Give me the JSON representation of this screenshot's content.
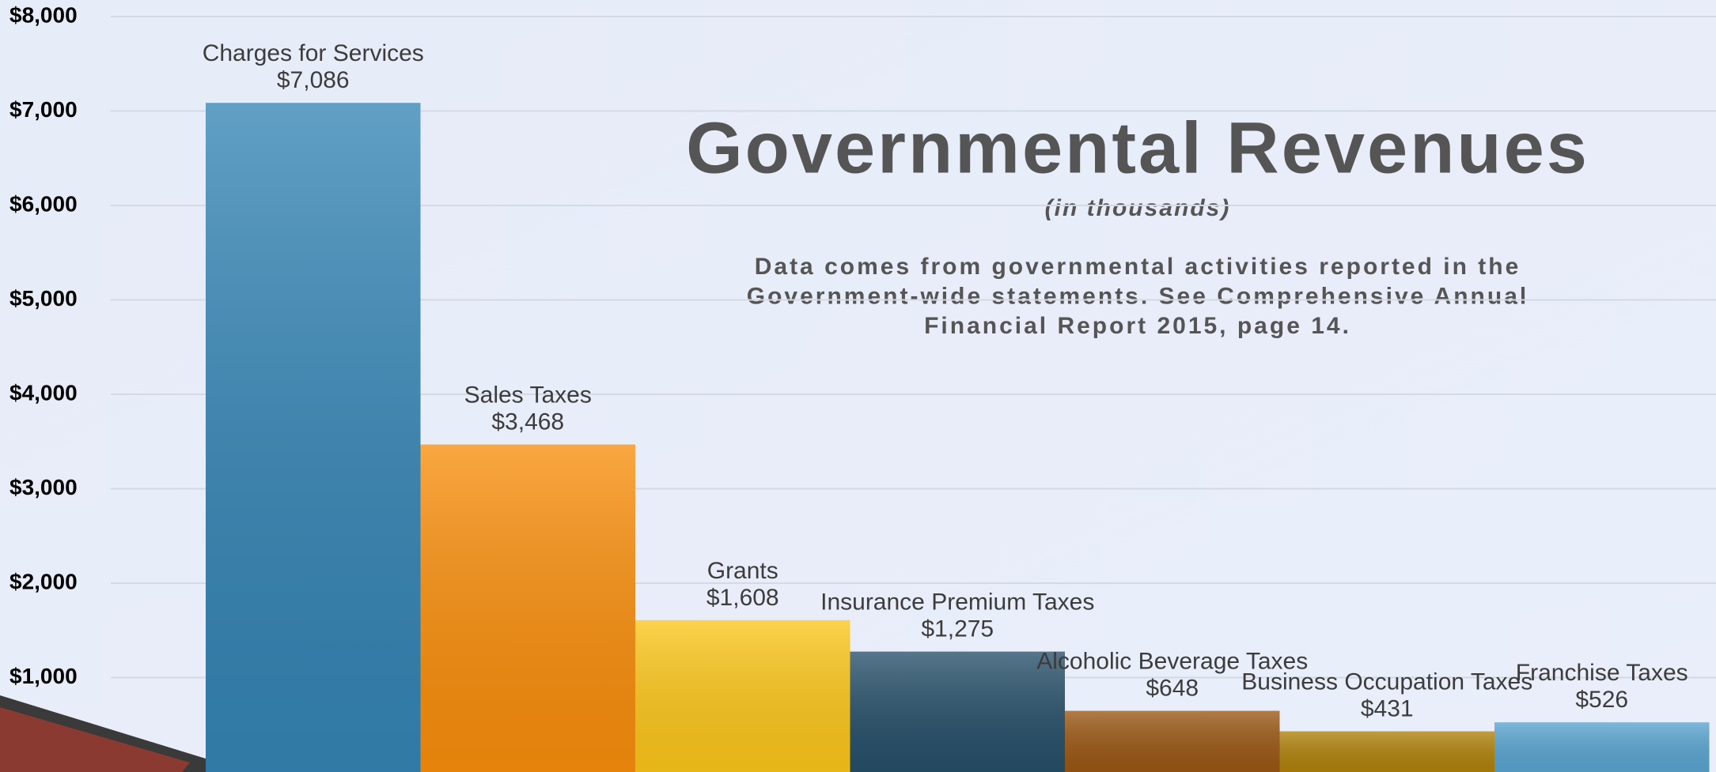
{
  "chart_data": {
    "type": "bar",
    "title": "Governmental Revenues",
    "subtitle": "(in thousands)",
    "note": [
      "Data comes from governmental activities reported in the",
      "Government-wide statements.  See Comprehensive Annual",
      "Financial Report 2015, page 14."
    ],
    "categories": [
      "Charges for Services",
      "Sales Taxes",
      "Grants",
      "Insurance Premium Taxes",
      "Alcoholic Beverage Taxes",
      "Business Occupation Taxes",
      "Franchise Taxes"
    ],
    "values": [
      7086,
      3468,
      1608,
      1275,
      648,
      431,
      526
    ],
    "value_labels": [
      "$7,086",
      "$3,468",
      "$1,608",
      "$1,275",
      "$648",
      "$431",
      "$526"
    ],
    "colors": [
      "#3585b5",
      "#f98e0c",
      "#fbc61a",
      "#264f69",
      "#9a5714",
      "#b0820c",
      "#5aa4d0"
    ],
    "ylim": [
      0,
      8000
    ],
    "yticks": [
      {
        "value": 1000,
        "label": "$1,000"
      },
      {
        "value": 2000,
        "label": "$2,000"
      },
      {
        "value": 3000,
        "label": "$3,000"
      },
      {
        "value": 4000,
        "label": "$4,000"
      },
      {
        "value": 5000,
        "label": "$5,000"
      },
      {
        "value": 6000,
        "label": "$6,000"
      },
      {
        "value": 7000,
        "label": "$7,000"
      },
      {
        "value": 8000,
        "label": "$8,000"
      }
    ],
    "grid": true
  }
}
